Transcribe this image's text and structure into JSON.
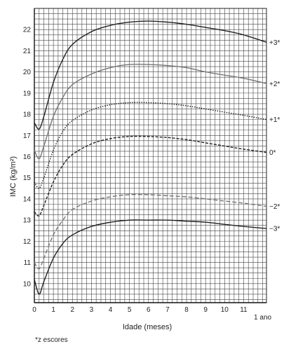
{
  "chart_data": {
    "type": "line",
    "xlabel": "Idade (meses)",
    "ylabel": "IMC (kg/m²)",
    "x_ticks": [
      {
        "value": 0,
        "label": "0"
      },
      {
        "value": 1,
        "label": "1"
      },
      {
        "value": 2,
        "label": "2"
      },
      {
        "value": 3,
        "label": "3"
      },
      {
        "value": 4,
        "label": "4"
      },
      {
        "value": 5,
        "label": "5"
      },
      {
        "value": 6,
        "label": "6"
      },
      {
        "value": 7,
        "label": "7"
      },
      {
        "value": 8,
        "label": "8"
      },
      {
        "value": 9,
        "label": "9"
      },
      {
        "value": 10,
        "label": "10"
      },
      {
        "value": 11,
        "label": "11"
      }
    ],
    "x_end_label": "1 ano",
    "y_ticks": [
      10,
      11,
      12,
      13,
      14,
      15,
      16,
      17,
      18,
      19,
      20,
      21,
      22
    ],
    "xlim": [
      0,
      12.2
    ],
    "ylim": [
      9.1,
      23.0
    ],
    "grid": true,
    "series": [
      {
        "name": "+3*",
        "color": "#222222",
        "dash": "solid",
        "x": [
          0,
          0.25,
          0.5,
          1,
          1.5,
          2,
          3,
          4,
          5,
          6,
          7,
          8,
          9,
          10,
          11,
          12.2
        ],
        "y": [
          17.6,
          17.3,
          17.9,
          19.5,
          20.6,
          21.3,
          21.9,
          22.2,
          22.35,
          22.4,
          22.35,
          22.25,
          22.1,
          21.95,
          21.75,
          21.4
        ]
      },
      {
        "name": "+2*",
        "color": "#777777",
        "dash": "solid",
        "x": [
          0,
          0.25,
          0.5,
          1,
          1.5,
          2,
          3,
          4,
          5,
          6,
          7,
          8,
          9,
          10,
          11,
          12.2
        ],
        "y": [
          16.3,
          15.9,
          16.5,
          17.9,
          18.8,
          19.4,
          19.9,
          20.2,
          20.35,
          20.35,
          20.3,
          20.2,
          20.0,
          19.85,
          19.7,
          19.45
        ]
      },
      {
        "name": "+1*",
        "color": "#222222",
        "dash": "1.5,1.8",
        "x": [
          0,
          0.25,
          0.5,
          1,
          1.5,
          2,
          3,
          4,
          5,
          6,
          7,
          8,
          9,
          10,
          11,
          12.2
        ],
        "y": [
          14.8,
          14.5,
          15.0,
          16.3,
          17.2,
          17.7,
          18.2,
          18.45,
          18.55,
          18.55,
          18.5,
          18.4,
          18.25,
          18.1,
          17.95,
          17.75
        ]
      },
      {
        "name": "0*",
        "color": "#222222",
        "dash": "4,2",
        "x": [
          0,
          0.25,
          0.5,
          1,
          1.5,
          2,
          3,
          4,
          5,
          6,
          7,
          8,
          9,
          10,
          11,
          12.2
        ],
        "y": [
          13.4,
          13.2,
          13.7,
          14.8,
          15.6,
          16.1,
          16.6,
          16.85,
          16.95,
          16.95,
          16.9,
          16.8,
          16.65,
          16.5,
          16.35,
          16.2
        ]
      },
      {
        "name": "−2*",
        "color": "#777777",
        "dash": "6,3",
        "x": [
          0,
          0.25,
          0.5,
          1,
          1.5,
          2,
          3,
          4,
          5,
          6,
          7,
          8,
          9,
          10,
          11,
          12.2
        ],
        "y": [
          11.0,
          10.7,
          11.2,
          12.3,
          13.0,
          13.5,
          13.9,
          14.1,
          14.2,
          14.2,
          14.15,
          14.1,
          14.0,
          13.9,
          13.8,
          13.65
        ]
      },
      {
        "name": "−3*",
        "color": "#222222",
        "dash": "solid",
        "x": [
          0,
          0.25,
          0.5,
          1,
          1.5,
          2,
          3,
          4,
          5,
          6,
          7,
          8,
          9,
          10,
          11,
          12.2
        ],
        "y": [
          10.2,
          9.5,
          10.1,
          11.2,
          11.9,
          12.3,
          12.7,
          12.9,
          13.0,
          13.0,
          13.0,
          12.95,
          12.9,
          12.8,
          12.7,
          12.6
        ]
      }
    ],
    "footnote": "*z escores"
  }
}
